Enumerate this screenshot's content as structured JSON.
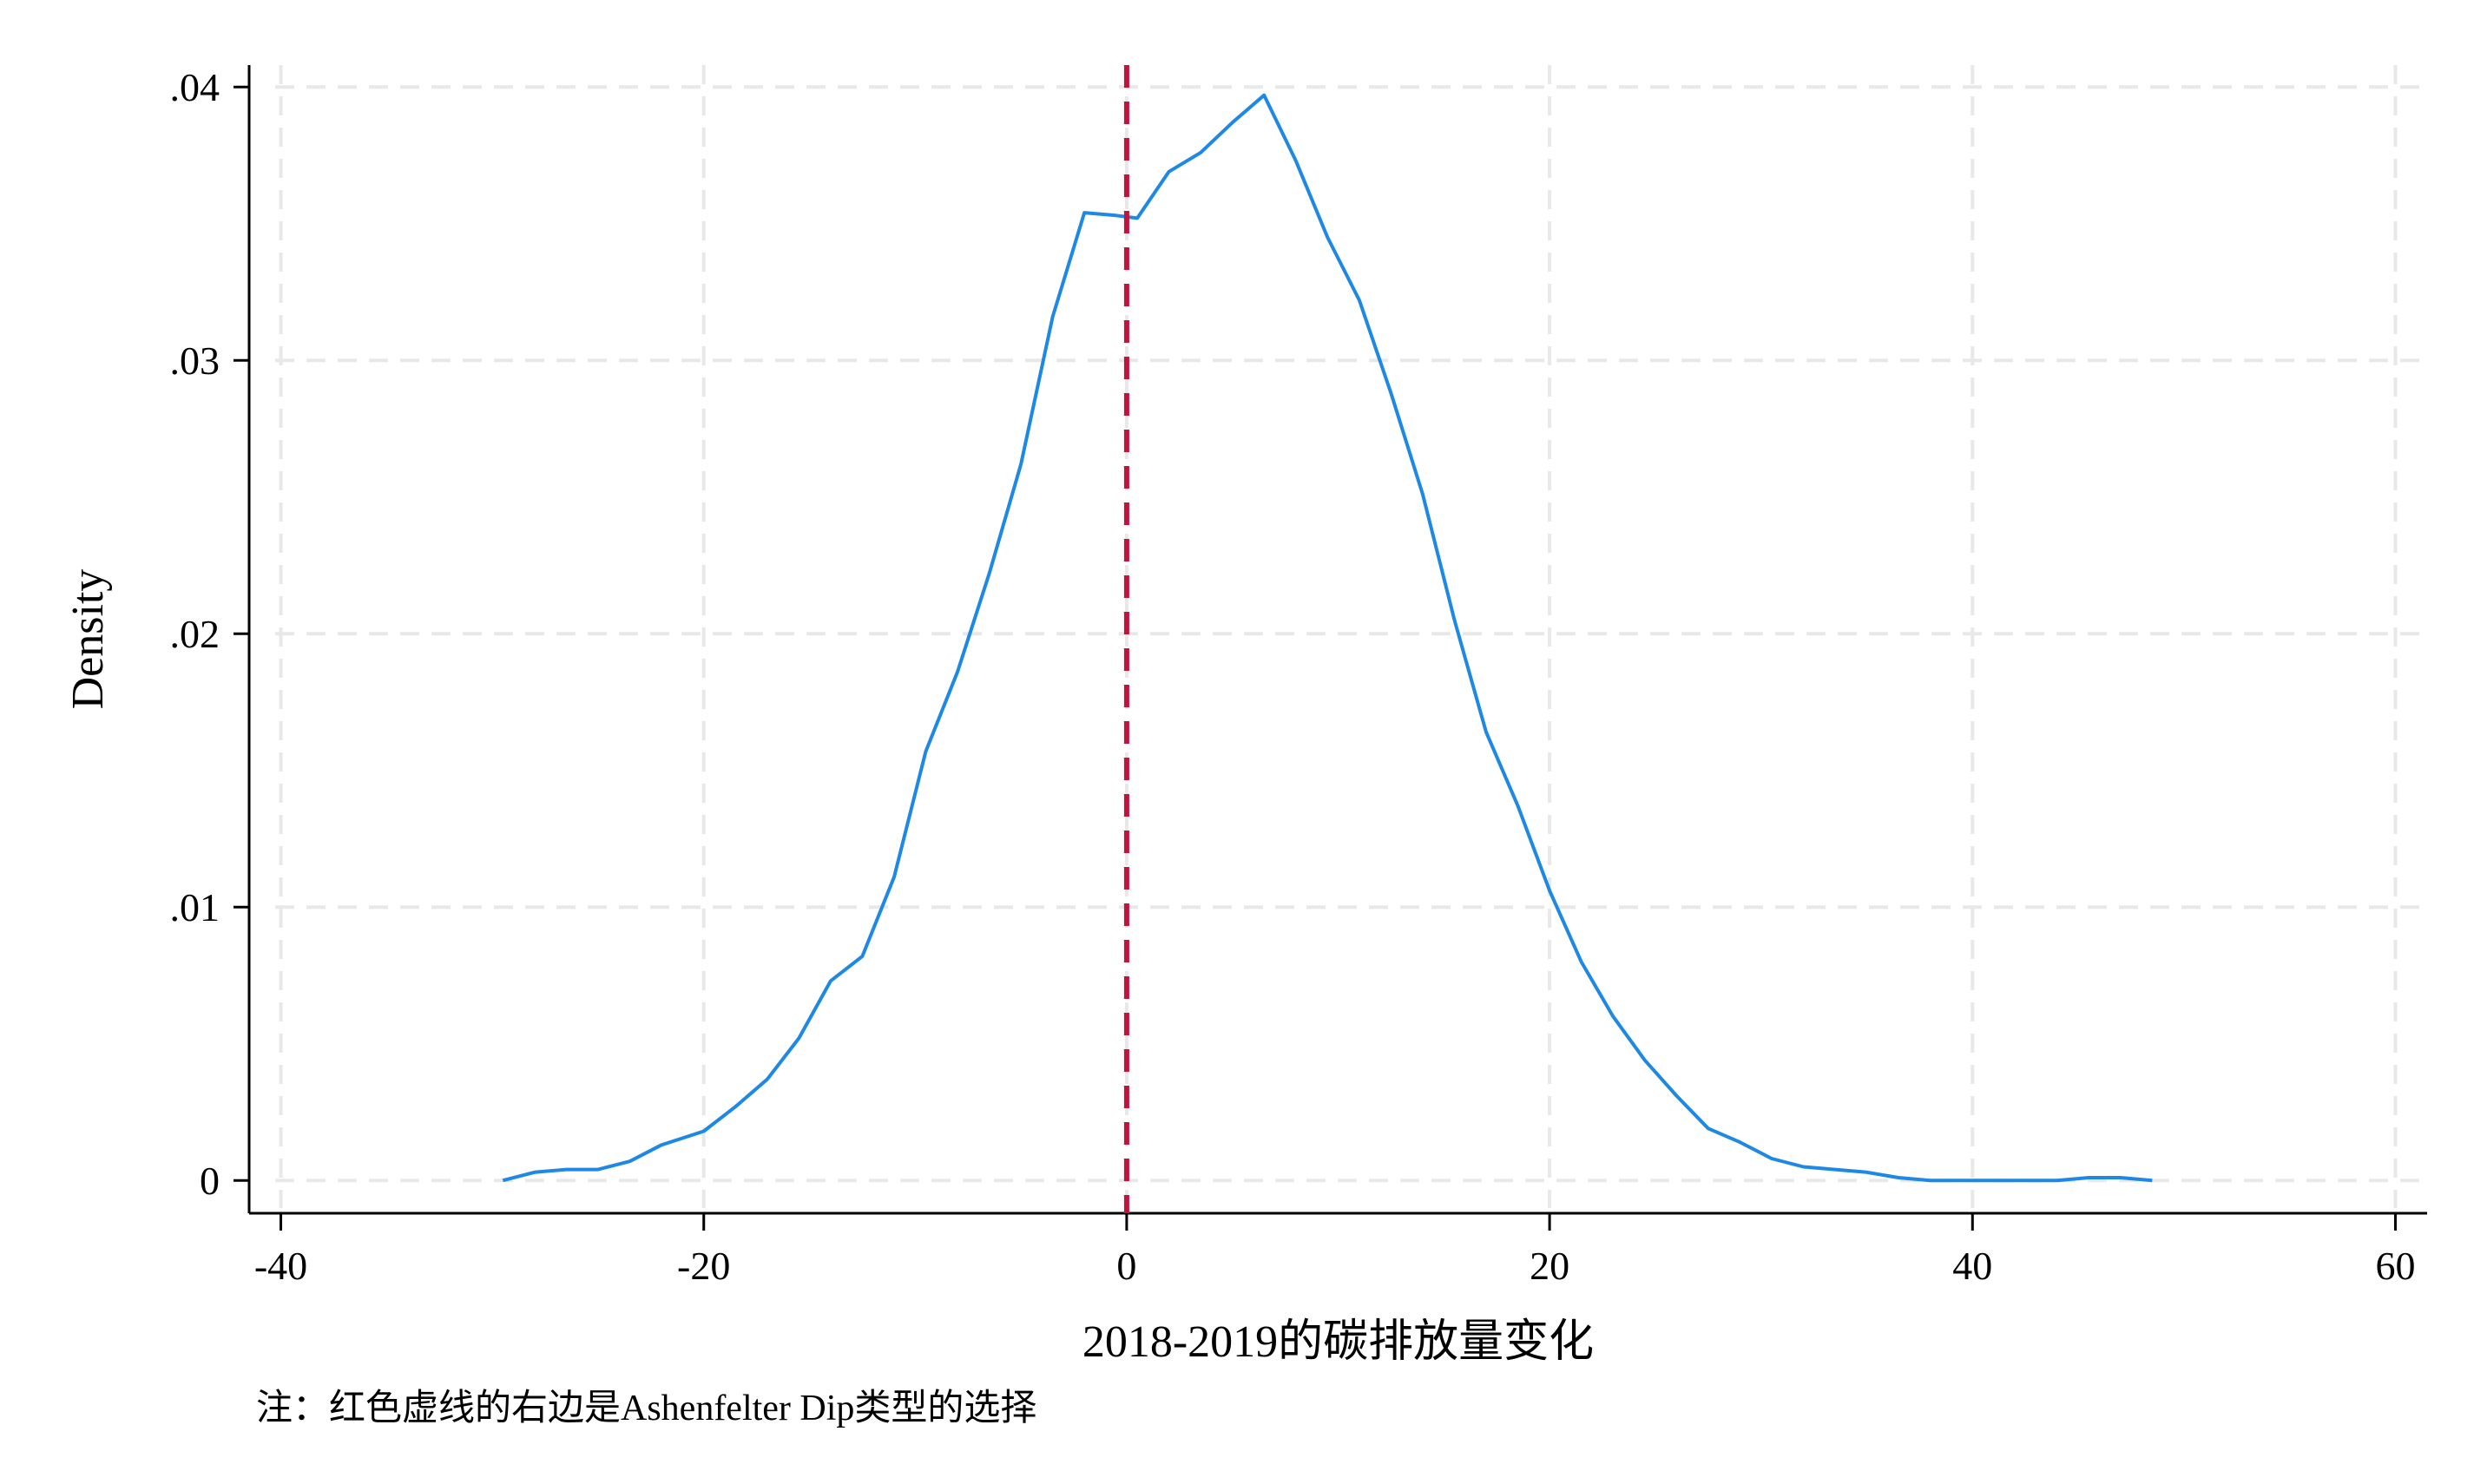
{
  "chart_data": {
    "type": "line",
    "xlabel": "2018-2019的碳排放量变化",
    "ylabel": "Density",
    "note": "注：红色虚线的右边是Ashenfelter Dip类型的选择",
    "xlim": [
      -41.5,
      61.5
    ],
    "ylim": [
      -0.0012,
      0.0408
    ],
    "x_ticks": [
      -40,
      -20,
      0,
      20,
      40,
      60
    ],
    "x_tick_labels": [
      "-40",
      "-20",
      "0",
      "20",
      "40",
      "60"
    ],
    "y_ticks": [
      0,
      0.01,
      0.02,
      0.03,
      0.04
    ],
    "y_tick_labels": [
      "0",
      ".01",
      ".02",
      ".03",
      ".04"
    ],
    "grid": true,
    "reference_line": {
      "x": 0,
      "color": "#c0143c",
      "style": "dashed"
    },
    "series": [
      {
        "color": "#1e88e5",
        "x": [
          -29.5,
          -28,
          -26.5,
          -25,
          -23.5,
          -22,
          -20,
          -18.5,
          -17,
          -15.5,
          -14,
          -12.5,
          -11,
          -9.5,
          -8,
          -6.5,
          -5,
          -3.5,
          -2,
          -0.5,
          0.5,
          2,
          3.5,
          5,
          6.5,
          8,
          9.5,
          11,
          12.5,
          14,
          15.5,
          17,
          18.5,
          20,
          21.5,
          23,
          24.5,
          26,
          27.5,
          29,
          30.5,
          32,
          33.5,
          35,
          36.5,
          38,
          39.5,
          41,
          42.5,
          44,
          45.5,
          47,
          48.5
        ],
        "y": [
          0.0,
          0.0003,
          0.0004,
          0.0004,
          0.0007,
          0.0013,
          0.0018,
          0.0027,
          0.0037,
          0.0052,
          0.0073,
          0.0082,
          0.0111,
          0.0157,
          0.0186,
          0.0222,
          0.0262,
          0.0316,
          0.0354,
          0.0353,
          0.0352,
          0.0369,
          0.0376,
          0.0387,
          0.0397,
          0.0373,
          0.0345,
          0.0322,
          0.0288,
          0.0251,
          0.0205,
          0.0164,
          0.0137,
          0.0106,
          0.008,
          0.006,
          0.0044,
          0.0031,
          0.0019,
          0.0014,
          0.0008,
          0.0005,
          0.0004,
          0.0003,
          0.0001,
          0.0,
          0.0,
          0.0,
          0.0,
          0.0,
          0.0001,
          0.0001,
          0.0
        ]
      }
    ]
  }
}
